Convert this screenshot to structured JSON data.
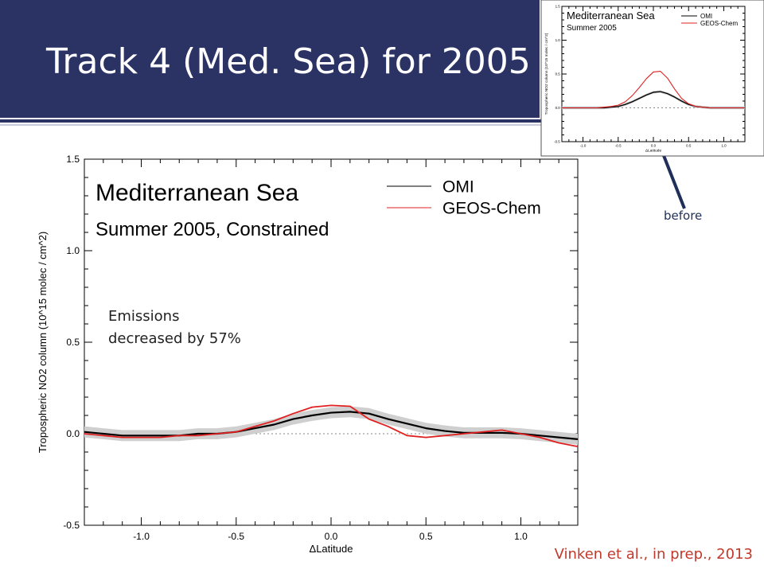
{
  "slide": {
    "title": "Track 4 (Med. Sea) for 2005",
    "citation": "Vinken et al., in prep., 2013",
    "note_line1": "Emissions",
    "note_line2": "decreased by 57%",
    "arrow_label": "before"
  },
  "colors": {
    "banner": "#2b3364",
    "omi": "#000000",
    "geos": "#e02020",
    "band": "#cfcfcf",
    "citation": "#c0392b"
  },
  "chart_data": [
    {
      "type": "line",
      "title": "Mediterranean Sea",
      "subtitle": "Summer 2005, Constrained",
      "xlabel": "ΔLatitude",
      "ylabel": "Tropospheric NO2 column (10^15 molec / cm^2)",
      "xlim": [
        -1.3,
        1.3
      ],
      "ylim": [
        -0.5,
        1.5
      ],
      "xticks": [
        "-1.0",
        "-0.5",
        "0.0",
        "0.5",
        "1.0"
      ],
      "yticks": [
        "-0.5",
        "0.0",
        "0.5",
        "1.0",
        "1.5"
      ],
      "reference_line": 0.0,
      "legend_position": "top-right",
      "x": [
        -1.3,
        -1.2,
        -1.1,
        -1.0,
        -0.9,
        -0.8,
        -0.7,
        -0.6,
        -0.5,
        -0.4,
        -0.3,
        -0.2,
        -0.1,
        0.0,
        0.1,
        0.2,
        0.3,
        0.4,
        0.5,
        0.6,
        0.7,
        0.8,
        0.9,
        1.0,
        1.1,
        1.2,
        1.3
      ],
      "series": [
        {
          "name": "OMI",
          "values": [
            0.01,
            0.0,
            -0.01,
            -0.01,
            -0.01,
            -0.01,
            0.0,
            0.0,
            0.01,
            0.03,
            0.05,
            0.08,
            0.1,
            0.115,
            0.12,
            0.11,
            0.08,
            0.055,
            0.03,
            0.015,
            0.005,
            0.005,
            0.005,
            0.0,
            -0.01,
            -0.02,
            -0.03
          ],
          "band": 0.03
        },
        {
          "name": "GEOS-Chem",
          "values": [
            0.0,
            -0.01,
            -0.02,
            -0.02,
            -0.02,
            -0.01,
            -0.01,
            0.0,
            0.01,
            0.04,
            0.07,
            0.11,
            0.145,
            0.155,
            0.15,
            0.08,
            0.04,
            -0.01,
            -0.02,
            -0.01,
            0.0,
            0.01,
            0.02,
            0.0,
            -0.02,
            -0.05,
            -0.07
          ]
        }
      ]
    },
    {
      "type": "line",
      "title": "Mediterranean Sea",
      "subtitle": "Summer 2005",
      "xlabel": "ΔLatitude",
      "ylabel": "Tropospheric NO2 column (10^15 molec / cm^2)",
      "xlim": [
        -1.3,
        1.3
      ],
      "ylim": [
        -0.5,
        1.5
      ],
      "xticks": [
        "-1.0",
        "-0.5",
        "0.0",
        "0.5",
        "1.0"
      ],
      "yticks": [
        "-0.5",
        "0.0",
        "0.5",
        "1.0",
        "1.5"
      ],
      "reference_line": 0.0,
      "legend_position": "top-right",
      "x": [
        -1.3,
        -1.2,
        -1.1,
        -1.0,
        -0.9,
        -0.8,
        -0.7,
        -0.6,
        -0.5,
        -0.4,
        -0.3,
        -0.2,
        -0.1,
        0.0,
        0.1,
        0.2,
        0.3,
        0.4,
        0.5,
        0.6,
        0.7,
        0.8,
        0.9,
        1.0,
        1.1,
        1.2,
        1.3
      ],
      "series": [
        {
          "name": "OMI",
          "values": [
            0.0,
            0.0,
            0.0,
            0.0,
            0.0,
            0.0,
            0.0,
            0.01,
            0.02,
            0.05,
            0.09,
            0.14,
            0.19,
            0.23,
            0.24,
            0.21,
            0.16,
            0.1,
            0.05,
            0.02,
            0.01,
            0.0,
            0.0,
            0.0,
            0.0,
            0.0,
            0.0
          ],
          "band": 0.02
        },
        {
          "name": "GEOS-Chem",
          "values": [
            0.0,
            0.0,
            0.0,
            0.0,
            0.0,
            0.0,
            0.01,
            0.02,
            0.04,
            0.09,
            0.18,
            0.3,
            0.43,
            0.53,
            0.54,
            0.44,
            0.28,
            0.14,
            0.06,
            0.02,
            0.01,
            0.0,
            0.0,
            0.0,
            0.0,
            0.0,
            0.0
          ]
        }
      ]
    }
  ]
}
